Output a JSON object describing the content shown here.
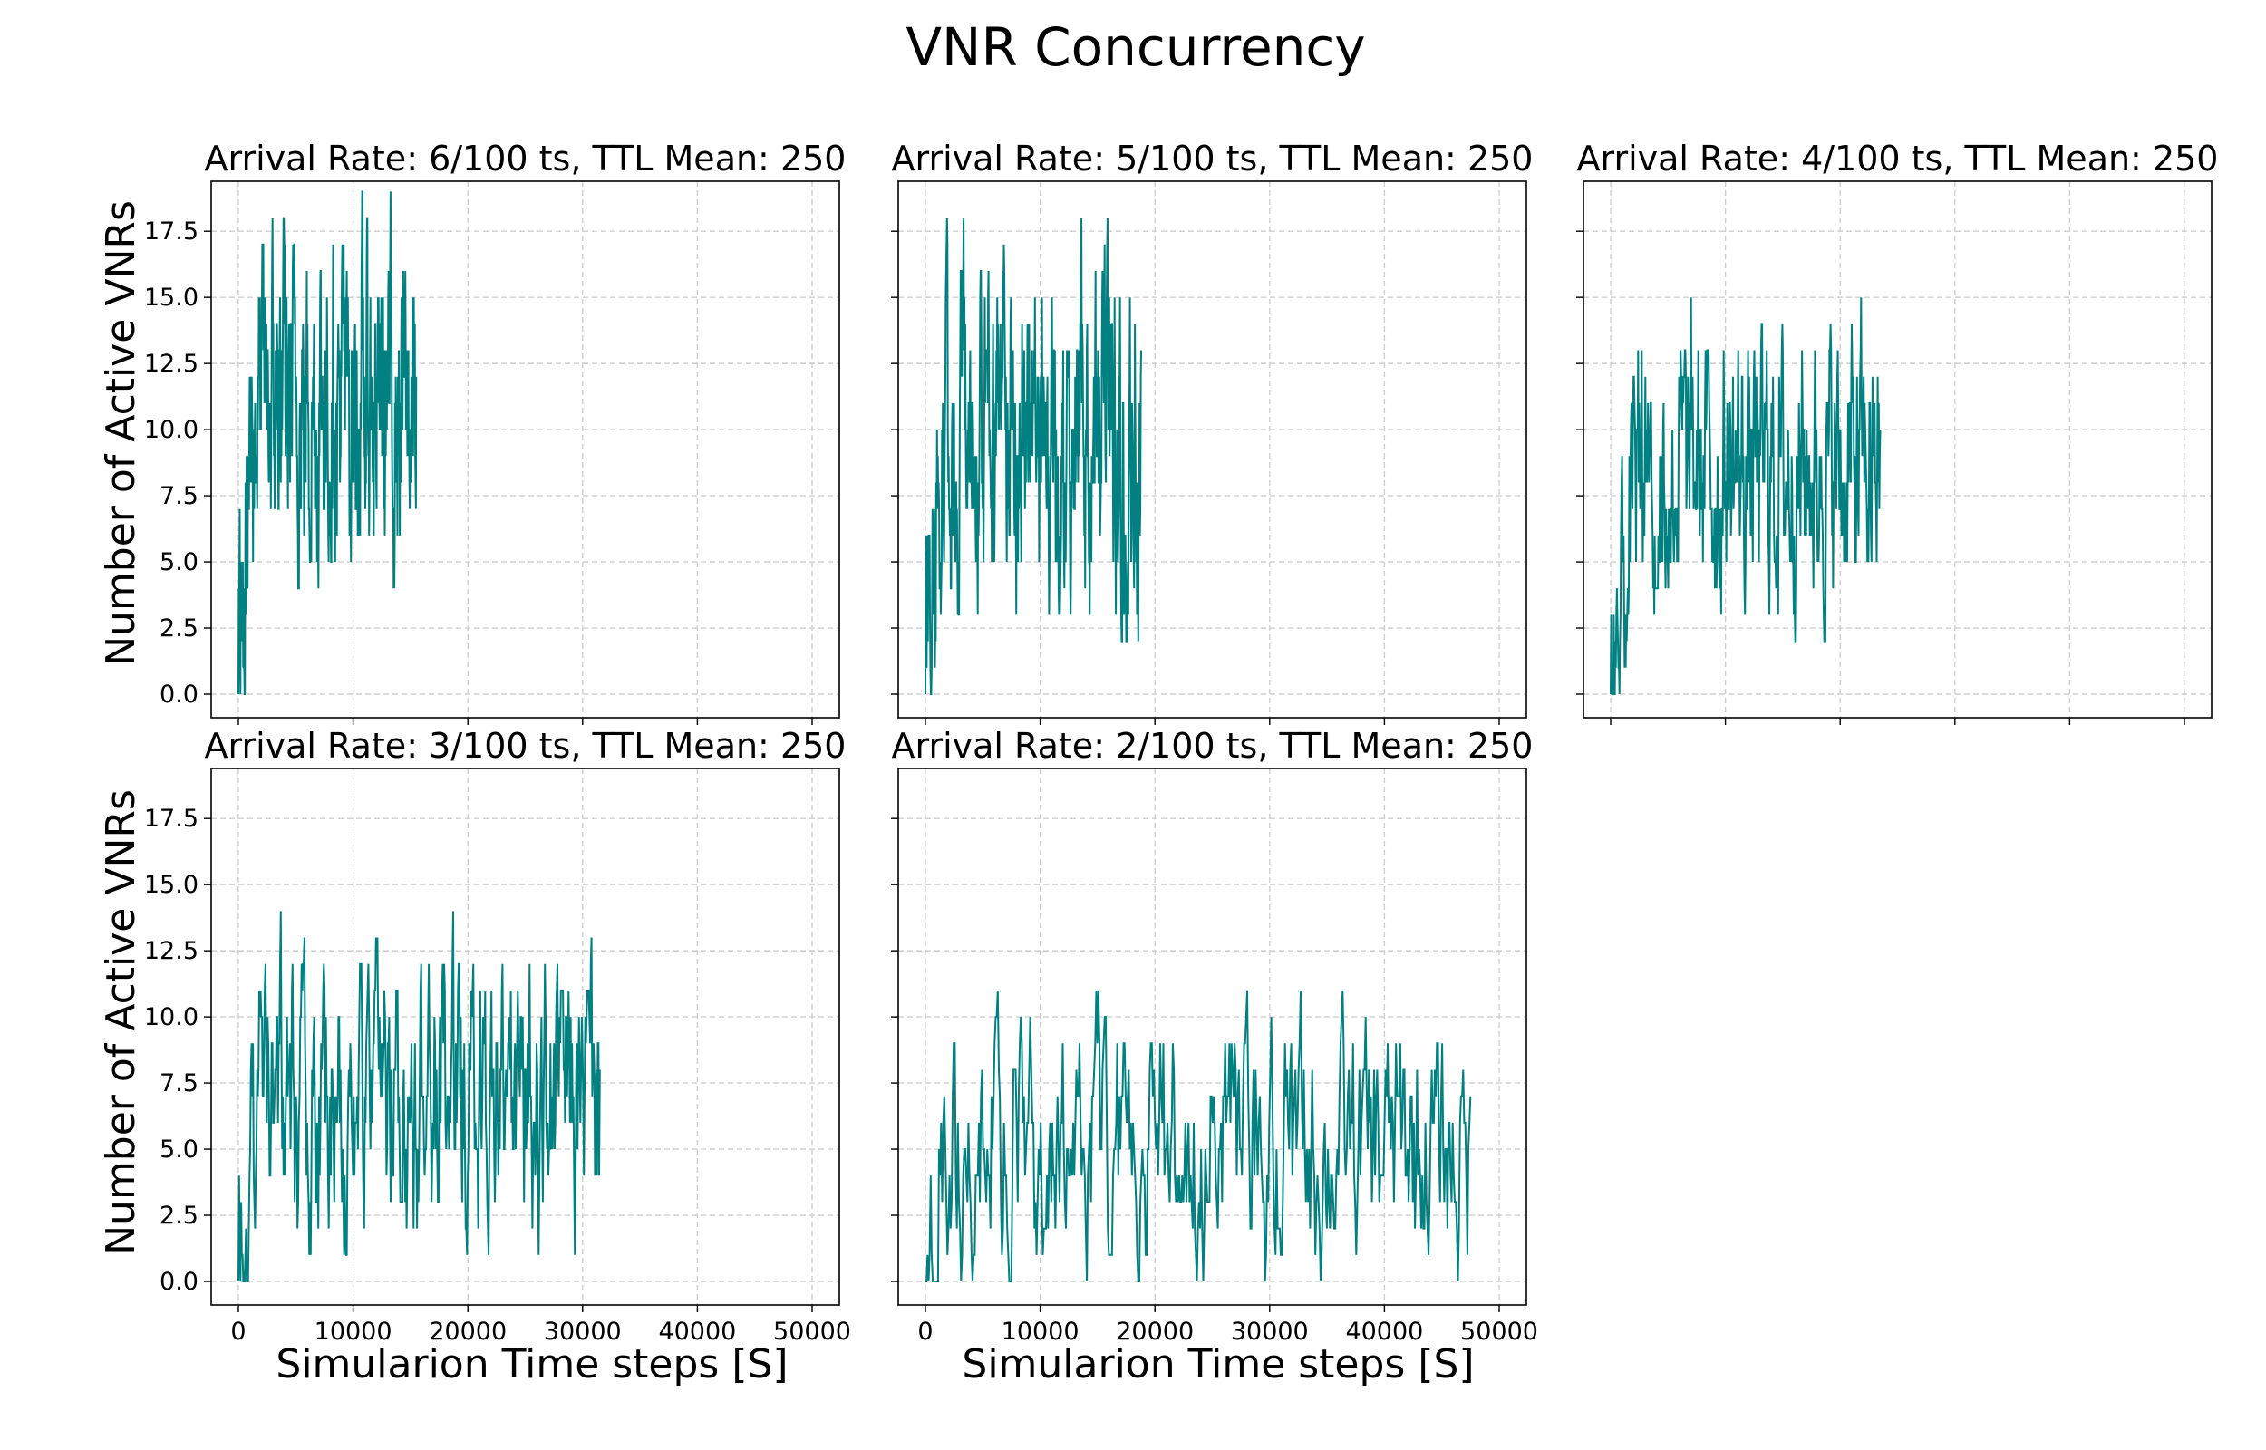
{
  "figure": {
    "title": "VNR Concurrency"
  },
  "axes_labels": {
    "ylabel": "Number of Active VNRs",
    "xlabel": "Simularion Time steps [S]"
  },
  "chart_data": [
    {
      "type": "line",
      "title": "Arrival Rate: 6/100 ts, TTL Mean: 250",
      "xlim": [
        0,
        50000
      ],
      "ylim": [
        0,
        18.5
      ],
      "x_ticks": [
        "0",
        "10000",
        "20000",
        "30000",
        "40000",
        "50000"
      ],
      "y_ticks": [
        "0.0",
        "2.5",
        "5.0",
        "7.5",
        "10.0",
        "12.5",
        "15.0",
        "17.5"
      ],
      "grid": true,
      "series": [
        {
          "color": "#008080",
          "x_end": 15500,
          "y_min": 4,
          "y_max": 19,
          "mean": 11,
          "ramp": 1200,
          "seed": 6
        }
      ]
    },
    {
      "type": "line",
      "title": "Arrival Rate: 5/100 ts, TTL Mean: 250",
      "xlim": [
        0,
        50000
      ],
      "ylim": [
        0,
        18.5
      ],
      "x_ticks": [
        "0",
        "10000",
        "20000",
        "30000",
        "40000",
        "50000"
      ],
      "y_ticks": [
        "0.0",
        "2.5",
        "5.0",
        "7.5",
        "10.0",
        "12.5",
        "15.0",
        "17.5"
      ],
      "grid": true,
      "series": [
        {
          "color": "#008080",
          "x_end": 18800,
          "y_min": 2,
          "y_max": 18,
          "mean": 9.5,
          "ramp": 1400,
          "seed": 5
        }
      ]
    },
    {
      "type": "line",
      "title": "Arrival Rate: 4/100 ts, TTL Mean: 250",
      "xlim": [
        0,
        50000
      ],
      "ylim": [
        0,
        18.5
      ],
      "x_ticks": [
        "0",
        "10000",
        "20000",
        "30000",
        "40000",
        "50000"
      ],
      "y_ticks": [
        "0.0",
        "2.5",
        "5.0",
        "7.5",
        "10.0",
        "12.5",
        "15.0",
        "17.5"
      ],
      "grid": true,
      "series": [
        {
          "color": "#008080",
          "x_end": 23500,
          "y_min": 2,
          "y_max": 15,
          "mean": 8.5,
          "ramp": 1500,
          "seed": 4
        }
      ]
    },
    {
      "type": "line",
      "title": "Arrival Rate: 3/100 ts, TTL Mean: 250",
      "xlim": [
        0,
        50000
      ],
      "ylim": [
        0,
        18.5
      ],
      "x_ticks": [
        "0",
        "10000",
        "20000",
        "30000",
        "40000",
        "50000"
      ],
      "y_ticks": [
        "0.0",
        "2.5",
        "5.0",
        "7.5",
        "10.0",
        "12.5",
        "15.0",
        "17.5"
      ],
      "grid": true,
      "series": [
        {
          "color": "#008080",
          "x_end": 31500,
          "y_min": 0,
          "y_max": 14,
          "mean": 6.8,
          "ramp": 1500,
          "seed": 3
        }
      ]
    },
    {
      "type": "line",
      "title": "Arrival Rate: 2/100 ts, TTL Mean: 250",
      "xlim": [
        0,
        50000
      ],
      "ylim": [
        0,
        18.5
      ],
      "x_ticks": [
        "0",
        "10000",
        "20000",
        "30000",
        "40000",
        "50000"
      ],
      "y_ticks": [
        "0.0",
        "2.5",
        "5.0",
        "7.5",
        "10.0",
        "12.5",
        "15.0",
        "17.5"
      ],
      "grid": true,
      "series": [
        {
          "color": "#008080",
          "x_end": 47500,
          "y_min": 0,
          "y_max": 12,
          "mean": 5,
          "ramp": 1200,
          "seed": 2
        }
      ]
    }
  ]
}
